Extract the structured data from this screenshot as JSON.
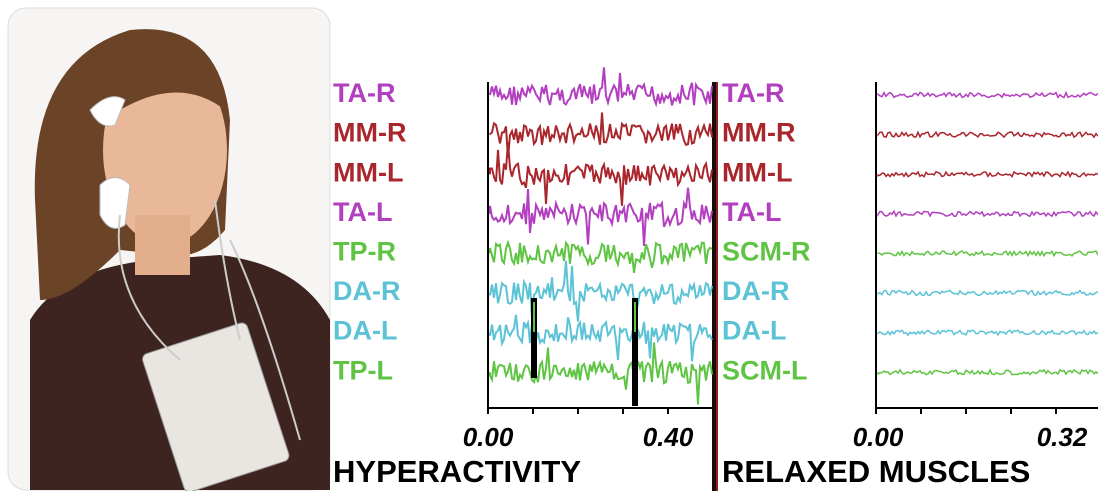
{
  "panels": [
    {
      "rows": [
        {
          "label": "TA-R",
          "color": "#b23fbf"
        },
        {
          "label": "MM-R",
          "color": "#a8262c"
        },
        {
          "label": "MM-L",
          "color": "#a8262c"
        },
        {
          "label": "TA-L",
          "color": "#b23fbf"
        },
        {
          "label": "TP-R",
          "color": "#5fc444"
        },
        {
          "label": "DA-R",
          "color": "#5cc3d6"
        },
        {
          "label": "DA-L",
          "color": "#5cc3d6"
        },
        {
          "label": "TP-L",
          "color": "#5fc444"
        }
      ],
      "ticks": [
        "0.00",
        "0.40"
      ],
      "caption": "HYPERACTIVITY"
    },
    {
      "rows": [
        {
          "label": "TA-R",
          "color": "#b23fbf"
        },
        {
          "label": "MM-R",
          "color": "#a8262c"
        },
        {
          "label": "MM-L",
          "color": "#a8262c"
        },
        {
          "label": "TA-L",
          "color": "#b23fbf"
        },
        {
          "label": "SCM-R",
          "color": "#5fc444"
        },
        {
          "label": "DA-R",
          "color": "#5cc3d6"
        },
        {
          "label": "DA-L",
          "color": "#5cc3d6"
        },
        {
          "label": "SCM-L",
          "color": "#5fc444"
        }
      ],
      "ticks": [
        "0.00",
        "0.32"
      ],
      "caption": "RELAXED MUSCLES"
    }
  ]
}
